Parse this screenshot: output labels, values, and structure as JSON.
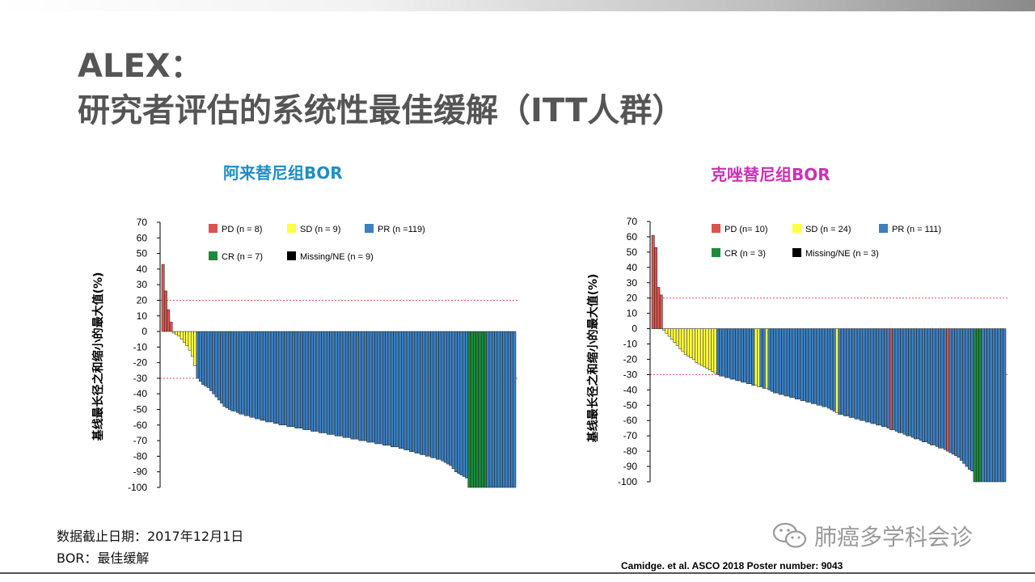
{
  "title_line1": "ALEX：",
  "title_line2": "研究者评估的系统性最佳缓解（ITT人群）",
  "footnote_line1": "数据截止日期：2017年12月1日",
  "footnote_line2": "BOR：最佳缓解",
  "citation": "Camidge. et al. ASCO 2018 Poster number: 9043",
  "watermark_text": "肺癌多学科会诊",
  "watermark_icon": "wechat-icon",
  "colors": {
    "PD": "#d9534f",
    "SD": "#ffff44",
    "PR": "#3d7fbf",
    "CR": "#1e8a3c",
    "NE": "#000000",
    "ref_line": "#d9534f"
  },
  "chart_data": [
    {
      "type": "bar",
      "title": "阿来替尼组BOR",
      "title_color": "#1f8dc6",
      "ylabel": "基线最长径之和缩小的最大值(%)",
      "ylim": [
        -100,
        70
      ],
      "yticks": [
        70,
        60,
        50,
        40,
        30,
        20,
        10,
        0,
        -10,
        -20,
        -30,
        -40,
        -50,
        -60,
        -70,
        -80,
        -90,
        -100
      ],
      "reference_lines": [
        20,
        -30
      ],
      "legend": [
        {
          "key": "PD",
          "label": "PD (n = 8)"
        },
        {
          "key": "SD",
          "label": "SD (n = 9)"
        },
        {
          "key": "PR",
          "label": "PR (n =119)"
        },
        {
          "key": "CR",
          "label": "CR (n = 7)"
        },
        {
          "key": "NE",
          "label": "Missing/NE (n = 9)"
        }
      ],
      "segments": [
        {
          "category": "PD",
          "values": [
            43,
            26,
            14,
            6
          ]
        },
        {
          "category": "SD",
          "values": [
            -1,
            -2,
            -3,
            -5,
            -7,
            -9,
            -12,
            -16,
            -22
          ]
        },
        {
          "category": "PR",
          "values": [
            -30,
            -32,
            -34,
            -35,
            -36,
            -38,
            -40,
            -42,
            -44,
            -46,
            -48,
            -49,
            -50,
            -51,
            -51,
            -52,
            -53,
            -53,
            -54,
            -54,
            -55,
            -55,
            -56,
            -56,
            -57,
            -57,
            -58,
            -58,
            -58,
            -59,
            -59,
            -60,
            -60,
            -60,
            -61,
            -61,
            -61,
            -62,
            -62,
            -62,
            -63,
            -63,
            -63,
            -64,
            -64,
            -64,
            -65,
            -65,
            -65,
            -66,
            -66,
            -66,
            -67,
            -67,
            -67,
            -68,
            -68,
            -68,
            -69,
            -69,
            -69,
            -70,
            -70,
            -70,
            -71,
            -71,
            -71,
            -72,
            -72,
            -72,
            -73,
            -73,
            -73,
            -74,
            -74,
            -74,
            -75,
            -75,
            -76,
            -76,
            -77,
            -77,
            -78,
            -78,
            -79,
            -79,
            -80,
            -80,
            -81,
            -81,
            -82,
            -82,
            -83,
            -84,
            -85,
            -86,
            -88,
            -90,
            -91,
            -92,
            -93,
            -94
          ]
        },
        {
          "category": "CR",
          "values": [
            -100,
            -100,
            -100,
            -100,
            -100,
            -100,
            -100
          ]
        },
        {
          "category": "PR",
          "values": [
            -100,
            -100,
            -100,
            -100,
            -100,
            -100,
            -100,
            -100,
            -100,
            -100,
            -100
          ]
        }
      ]
    },
    {
      "type": "bar",
      "title": "克唑替尼组BOR",
      "title_color": "#c832b4",
      "ylabel": "基线最长径之和缩小的最大值(%)",
      "ylim": [
        -100,
        70
      ],
      "yticks": [
        70,
        60,
        50,
        40,
        30,
        20,
        10,
        0,
        -10,
        -20,
        -30,
        -40,
        -50,
        -60,
        -70,
        -80,
        -90,
        -100
      ],
      "reference_lines": [
        20,
        -30
      ],
      "legend": [
        {
          "key": "PD",
          "label": "PD (n= 10)"
        },
        {
          "key": "SD",
          "label": "SD (n = 24)"
        },
        {
          "key": "PR",
          "label": "PR (n = 111)"
        },
        {
          "key": "CR",
          "label": "CR (n = 3)"
        },
        {
          "key": "NE",
          "label": "Missing/NE (n = 3)"
        }
      ],
      "segments": [
        {
          "category": "PD",
          "values": [
            61,
            53,
            27,
            22
          ]
        },
        {
          "category": "SD",
          "values": [
            -1,
            -3,
            -5,
            -7,
            -9,
            -11,
            -13,
            -15,
            -17,
            -18,
            -19,
            -20,
            -22,
            -23,
            -24,
            -25,
            -26,
            -27,
            -28,
            -29
          ]
        },
        {
          "category": "PR",
          "values": [
            -30,
            -31,
            -31,
            -32,
            -32,
            -33,
            -33,
            -34,
            -34,
            -35,
            -35,
            -36,
            -36,
            -37
          ]
        },
        {
          "category": "SD",
          "values": [
            -37,
            -38
          ]
        },
        {
          "category": "PR",
          "values": [
            -38,
            -39
          ]
        },
        {
          "category": "SD",
          "values": [
            -39
          ]
        },
        {
          "category": "PR",
          "values": [
            -40,
            -41,
            -42,
            -42,
            -43,
            -43,
            -44,
            -44,
            -45,
            -45,
            -46,
            -46,
            -47,
            -47,
            -48,
            -48,
            -49,
            -49,
            -50,
            -50,
            -51,
            -51,
            -52,
            -53,
            -54
          ]
        },
        {
          "category": "SD",
          "values": [
            -55
          ]
        },
        {
          "category": "PR",
          "values": [
            -56,
            -56,
            -57,
            -57,
            -58,
            -58,
            -59,
            -59,
            -60,
            -60,
            -61,
            -61,
            -62,
            -62,
            -63,
            -63,
            -64,
            -64,
            -65
          ]
        },
        {
          "category": "PD",
          "values": [
            -66
          ]
        },
        {
          "category": "PR",
          "values": [
            -66,
            -67,
            -68,
            -68,
            -69,
            -70,
            -70,
            -71,
            -72,
            -72,
            -73,
            -74,
            -74,
            -75,
            -76,
            -76,
            -77,
            -78,
            -78,
            -79
          ]
        },
        {
          "category": "PD",
          "values": [
            -80
          ]
        },
        {
          "category": "PR",
          "values": [
            -81,
            -82,
            -83,
            -84,
            -86,
            -88,
            -90,
            -92,
            -93
          ]
        },
        {
          "category": "CR",
          "values": [
            -100,
            -100,
            -100
          ]
        },
        {
          "category": "PR",
          "values": [
            -100,
            -100,
            -100,
            -100,
            -100,
            -100,
            -100,
            -100,
            -100
          ]
        }
      ]
    }
  ]
}
